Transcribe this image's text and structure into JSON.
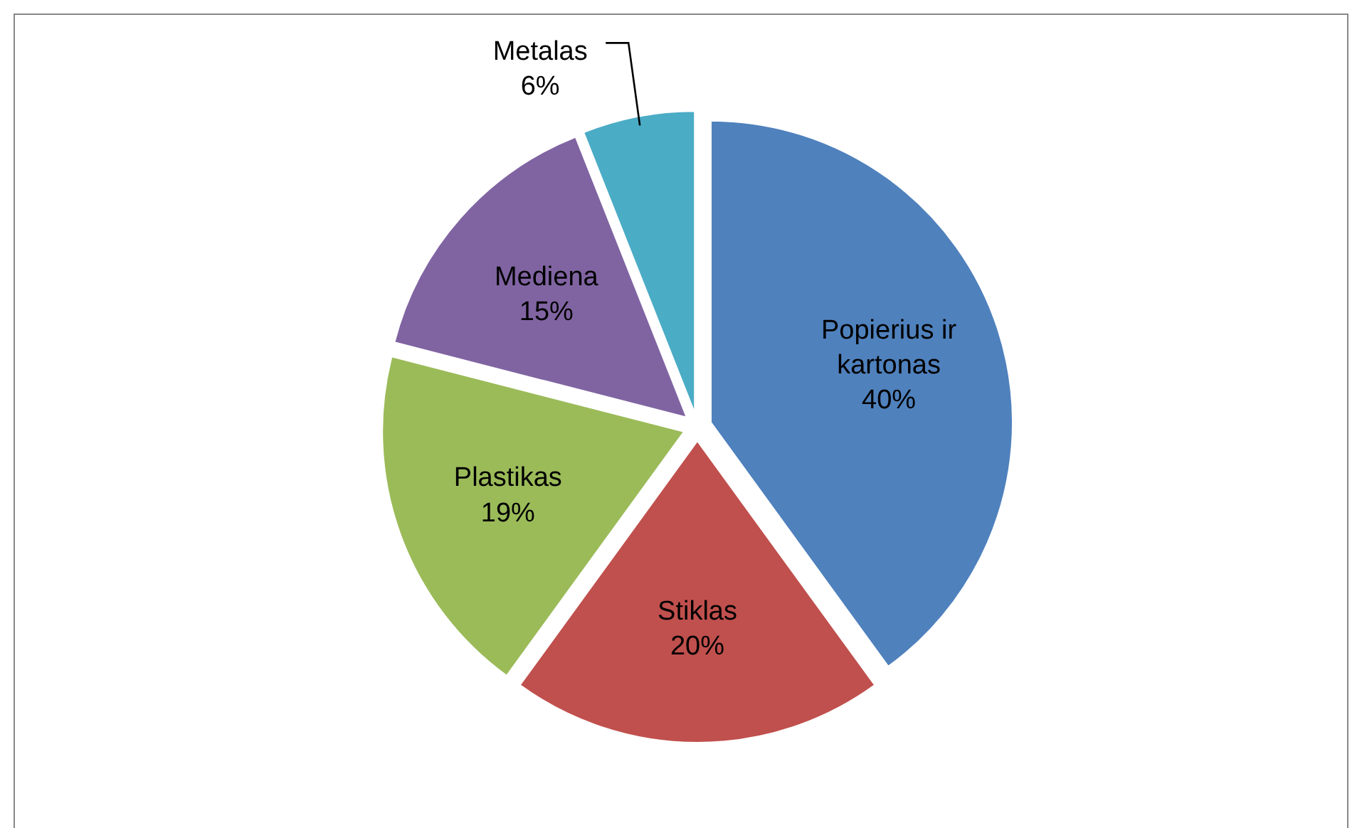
{
  "chart_data": {
    "type": "pie",
    "categories": [
      "Popierius ir kartonas",
      "Stiklas",
      "Plastikas",
      "Mediena",
      "Metalas"
    ],
    "values": [
      40,
      20,
      19,
      15,
      6
    ],
    "colors": [
      "#4f81bd",
      "#c0504d",
      "#9bbb59",
      "#8064a2",
      "#4bacc6"
    ],
    "value_labels": [
      "40%",
      "20%",
      "19%",
      "15%",
      "6%"
    ]
  }
}
